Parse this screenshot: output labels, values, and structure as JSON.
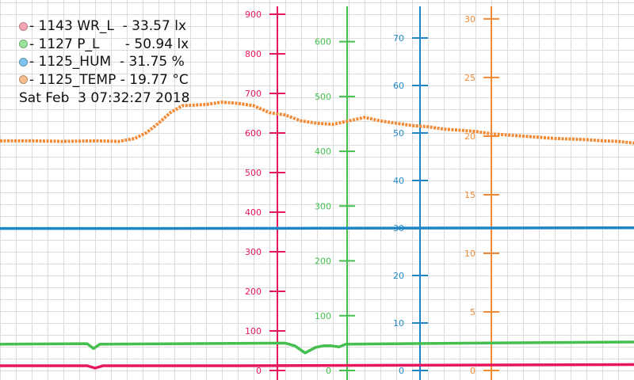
{
  "legend": [
    {
      "text": "- 1143 WR_L  - 33.57 lx",
      "color": "#f4a6b3"
    },
    {
      "text": "- 1127 P_L      - 50.94 lx",
      "color": "#9be39b"
    },
    {
      "text": "- 1125_HUM  - 31.75 %",
      "color": "#7fc4ee"
    },
    {
      "text": "- 1125_TEMP - 19.77 °C",
      "color": "#f7bf8e"
    }
  ],
  "timestamp": "Sat Feb  3 07:32:27 2018",
  "chart_data": {
    "type": "line",
    "grid": true,
    "axes": [
      {
        "name": "wr_l",
        "color": "#e8175d",
        "min": 0,
        "max": 900,
        "ticks": [
          0,
          100,
          200,
          300,
          400,
          500,
          600,
          700,
          800,
          900
        ]
      },
      {
        "name": "p_l",
        "color": "#45c04e",
        "min": 0,
        "max": 650,
        "ticks": [
          0,
          100,
          200,
          300,
          400,
          500,
          600
        ]
      },
      {
        "name": "hum",
        "color": "#1f86c6",
        "min": 0,
        "max": 75,
        "ticks": [
          0,
          10,
          20,
          30,
          40,
          50,
          60,
          70
        ]
      },
      {
        "name": "temp",
        "color": "#f28a35",
        "min": 0,
        "max": 30.4,
        "ticks": [
          0,
          5,
          10,
          15,
          20,
          25,
          30
        ]
      }
    ],
    "series": [
      {
        "axis": "wr_l",
        "color": "#e8175d",
        "style": "line",
        "points": [
          [
            0,
            12
          ],
          [
            110,
            12
          ],
          [
            120,
            6
          ],
          [
            130,
            12
          ],
          [
            300,
            12
          ],
          [
            800,
            15
          ]
        ]
      },
      {
        "axis": "p_l",
        "color": "#45c04e",
        "style": "line",
        "points": [
          [
            0,
            48
          ],
          [
            110,
            49
          ],
          [
            118,
            40
          ],
          [
            126,
            48
          ],
          [
            360,
            50
          ],
          [
            372,
            45
          ],
          [
            385,
            32
          ],
          [
            398,
            42
          ],
          [
            408,
            45
          ],
          [
            418,
            45
          ],
          [
            428,
            43
          ],
          [
            436,
            48
          ],
          [
            600,
            50
          ],
          [
            800,
            52
          ]
        ]
      },
      {
        "axis": "hum",
        "color": "#1f86c6",
        "style": "line",
        "points": [
          [
            0,
            29.9
          ],
          [
            200,
            29.9
          ],
          [
            400,
            29.95
          ],
          [
            600,
            30.0
          ],
          [
            800,
            30.05
          ]
        ]
      },
      {
        "axis": "temp",
        "color": "#f28a35",
        "style": "dotted",
        "points": [
          [
            0,
            19.6
          ],
          [
            40,
            19.6
          ],
          [
            80,
            19.55
          ],
          [
            120,
            19.6
          ],
          [
            150,
            19.55
          ],
          [
            170,
            19.8
          ],
          [
            185,
            20.3
          ],
          [
            200,
            21.1
          ],
          [
            215,
            22.0
          ],
          [
            230,
            22.6
          ],
          [
            260,
            22.7
          ],
          [
            280,
            22.9
          ],
          [
            300,
            22.8
          ],
          [
            320,
            22.6
          ],
          [
            340,
            22.0
          ],
          [
            360,
            21.8
          ],
          [
            380,
            21.3
          ],
          [
            400,
            21.1
          ],
          [
            420,
            21.0
          ],
          [
            440,
            21.3
          ],
          [
            460,
            21.6
          ],
          [
            480,
            21.3
          ],
          [
            500,
            21.1
          ],
          [
            520,
            20.9
          ],
          [
            540,
            20.8
          ],
          [
            560,
            20.6
          ],
          [
            580,
            20.5
          ],
          [
            600,
            20.4
          ],
          [
            620,
            20.2
          ],
          [
            640,
            20.1
          ],
          [
            660,
            20.0
          ],
          [
            680,
            19.9
          ],
          [
            700,
            19.8
          ],
          [
            720,
            19.75
          ],
          [
            740,
            19.7
          ],
          [
            760,
            19.6
          ],
          [
            780,
            19.55
          ],
          [
            800,
            19.4
          ]
        ]
      }
    ]
  }
}
